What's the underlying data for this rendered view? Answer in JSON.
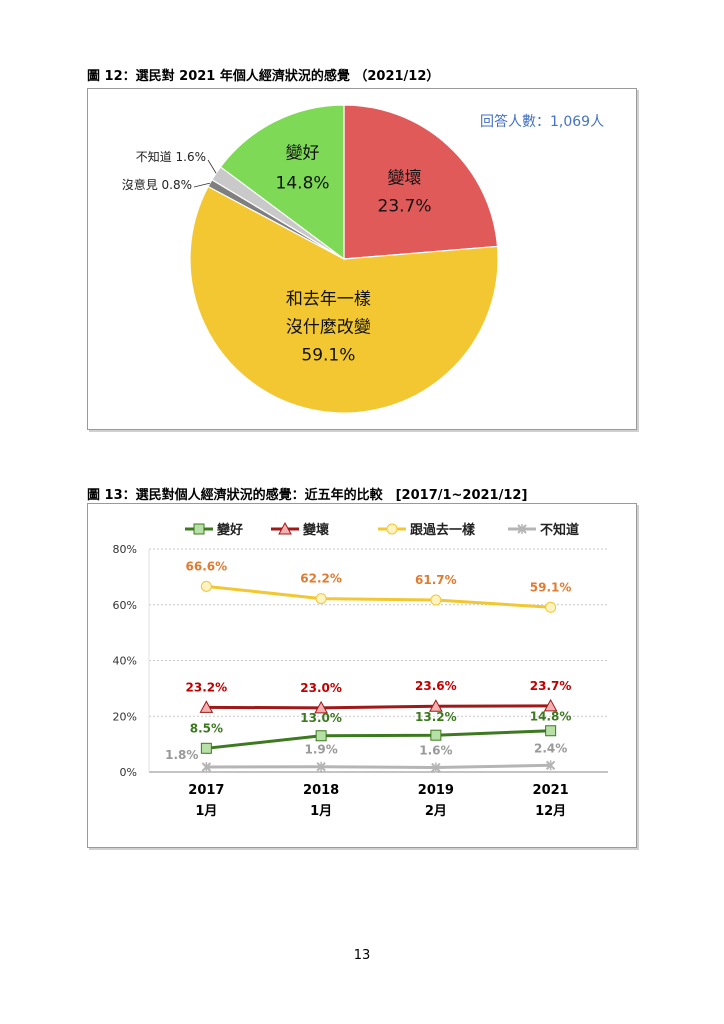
{
  "figure12": {
    "caption": "圖 12：選民對 2021 年個人經濟狀況的感覺 （2021/12）",
    "respondents": "回答人數：1,069人",
    "chart_data": {
      "type": "pie",
      "slices": [
        {
          "label": "變壞",
          "value": 23.7,
          "value_label": "23.7%",
          "color": "#e05a5a"
        },
        {
          "label": "和去年一樣沒什麼改變",
          "label_line1": "和去年一樣",
          "label_line2": "沒什麼改變",
          "value": 59.1,
          "value_label": "59.1%",
          "color": "#f2c731"
        },
        {
          "label": "沒意見",
          "value": 0.8,
          "value_label": "0.8%",
          "color": "#7f7f7f"
        },
        {
          "label": "不知道",
          "value": 1.6,
          "value_label": "1.6%",
          "color": "#c9c9c9"
        },
        {
          "label": "變好",
          "value": 14.8,
          "value_label": "14.8%",
          "color": "#7ed957"
        }
      ],
      "outside_labels": [
        "不知道 1.6%",
        "沒意見 0.8%"
      ]
    }
  },
  "figure13": {
    "caption": "圖 13：選民對個人經濟狀況的感覺：近五年的比較　[2017/1~2021/12]",
    "chart_data": {
      "type": "line",
      "x_labels": [
        [
          "2017",
          "1月"
        ],
        [
          "2018",
          "1月"
        ],
        [
          "2019",
          "2月"
        ],
        [
          "2021",
          "12月"
        ]
      ],
      "y_ticks": [
        "0%",
        "20%",
        "40%",
        "60%",
        "80%"
      ],
      "ylim": [
        0,
        80
      ],
      "series": [
        {
          "name": "變好",
          "color": "#3d7a1f",
          "marker": "square",
          "marker_fill": "#b6e0a6",
          "values": [
            8.5,
            13.0,
            13.2,
            14.8
          ],
          "labels": [
            "8.5%",
            "13.0%",
            "13.2%",
            "14.8%"
          ],
          "label_color": "#3d7a1f"
        },
        {
          "name": "變壞",
          "color": "#a01818",
          "marker": "triangle",
          "marker_fill": "#f2b0b0",
          "values": [
            23.2,
            23.0,
            23.6,
            23.7
          ],
          "labels": [
            "23.2%",
            "23.0%",
            "23.6%",
            "23.7%"
          ],
          "label_color": "#c00000"
        },
        {
          "name": "跟過去一樣",
          "color": "#f2c731",
          "marker": "circle",
          "marker_fill": "#fff3c2",
          "values": [
            66.6,
            62.2,
            61.7,
            59.1
          ],
          "labels": [
            "66.6%",
            "62.2%",
            "61.7%",
            "59.1%"
          ],
          "label_color": "#e07b30"
        },
        {
          "name": "不知道",
          "color": "#b5b5b5",
          "marker": "x",
          "marker_fill": "#b5b5b5",
          "values": [
            1.8,
            1.9,
            1.6,
            2.4
          ],
          "labels": [
            "1.8%",
            "1.9%",
            "1.6%",
            "2.4%"
          ],
          "label_color": "#999999"
        }
      ]
    }
  },
  "page_number": "13"
}
